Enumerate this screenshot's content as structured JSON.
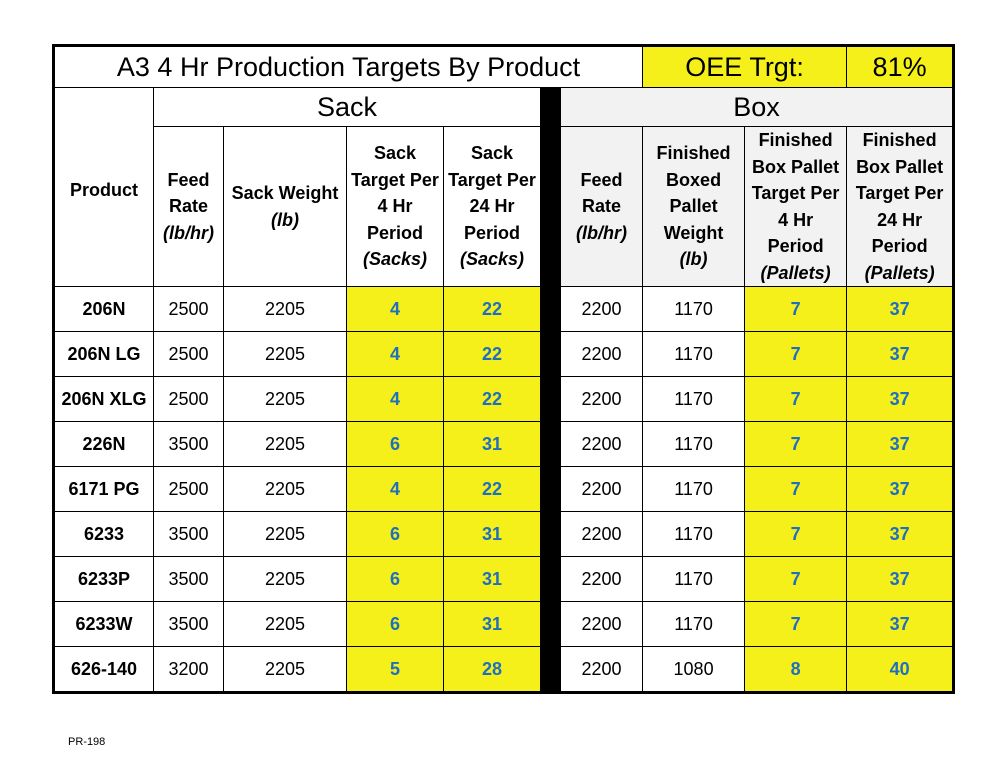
{
  "title": "A3 4 Hr Production Targets By Product",
  "oee": {
    "label": "OEE Trgt:",
    "value": "81%"
  },
  "sections": {
    "sack": "Sack",
    "box": "Box"
  },
  "headers": {
    "product": "Product",
    "sack_feed_rate": [
      "Feed",
      "Rate",
      "(lb/hr)"
    ],
    "sack_weight": [
      "Sack Weight",
      "(lb)"
    ],
    "sack_target_4hr": [
      "Sack",
      "Target Per",
      "4 Hr",
      "Period",
      "(Sacks)"
    ],
    "sack_target_24hr": [
      "Sack",
      "Target Per",
      "24 Hr",
      "Period",
      "(Sacks)"
    ],
    "box_feed_rate": [
      "Feed",
      "Rate",
      "(lb/hr)"
    ],
    "box_pallet_weight": [
      "Finished",
      "Boxed",
      "Pallet",
      "Weight",
      "(lb)"
    ],
    "box_target_4hr": [
      "Finished",
      "Box Pallet",
      "Target Per",
      "4 Hr",
      "Period",
      "(Pallets)"
    ],
    "box_target_24hr": [
      "Finished",
      "Box Pallet",
      "Target Per",
      "24 Hr",
      "Period",
      "(Pallets)"
    ]
  },
  "rows": [
    {
      "product": "206N",
      "sack_feed": "2500",
      "sack_weight": "2205",
      "sack_4": "4",
      "sack_24": "22",
      "box_feed": "2200",
      "box_weight": "1170",
      "box_4": "7",
      "box_24": "37"
    },
    {
      "product": "206N LG",
      "sack_feed": "2500",
      "sack_weight": "2205",
      "sack_4": "4",
      "sack_24": "22",
      "box_feed": "2200",
      "box_weight": "1170",
      "box_4": "7",
      "box_24": "37"
    },
    {
      "product": "206N XLG",
      "sack_feed": "2500",
      "sack_weight": "2205",
      "sack_4": "4",
      "sack_24": "22",
      "box_feed": "2200",
      "box_weight": "1170",
      "box_4": "7",
      "box_24": "37"
    },
    {
      "product": "226N",
      "sack_feed": "3500",
      "sack_weight": "2205",
      "sack_4": "6",
      "sack_24": "31",
      "box_feed": "2200",
      "box_weight": "1170",
      "box_4": "7",
      "box_24": "37"
    },
    {
      "product": "6171 PG",
      "sack_feed": "2500",
      "sack_weight": "2205",
      "sack_4": "4",
      "sack_24": "22",
      "box_feed": "2200",
      "box_weight": "1170",
      "box_4": "7",
      "box_24": "37"
    },
    {
      "product": "6233",
      "sack_feed": "3500",
      "sack_weight": "2205",
      "sack_4": "6",
      "sack_24": "31",
      "box_feed": "2200",
      "box_weight": "1170",
      "box_4": "7",
      "box_24": "37"
    },
    {
      "product": "6233P",
      "sack_feed": "3500",
      "sack_weight": "2205",
      "sack_4": "6",
      "sack_24": "31",
      "box_feed": "2200",
      "box_weight": "1170",
      "box_4": "7",
      "box_24": "37"
    },
    {
      "product": "6233W",
      "sack_feed": "3500",
      "sack_weight": "2205",
      "sack_4": "6",
      "sack_24": "31",
      "box_feed": "2200",
      "box_weight": "1170",
      "box_4": "7",
      "box_24": "37"
    },
    {
      "product": "626-140",
      "sack_feed": "3200",
      "sack_weight": "2205",
      "sack_4": "5",
      "sack_24": "28",
      "box_feed": "2200",
      "box_weight": "1080",
      "box_4": "8",
      "box_24": "40"
    }
  ],
  "footer": "PR-198",
  "colors": {
    "highlight": "#f5f01a",
    "target_text": "#1f6fbf",
    "box_header_bg": "#f2f2f2"
  }
}
